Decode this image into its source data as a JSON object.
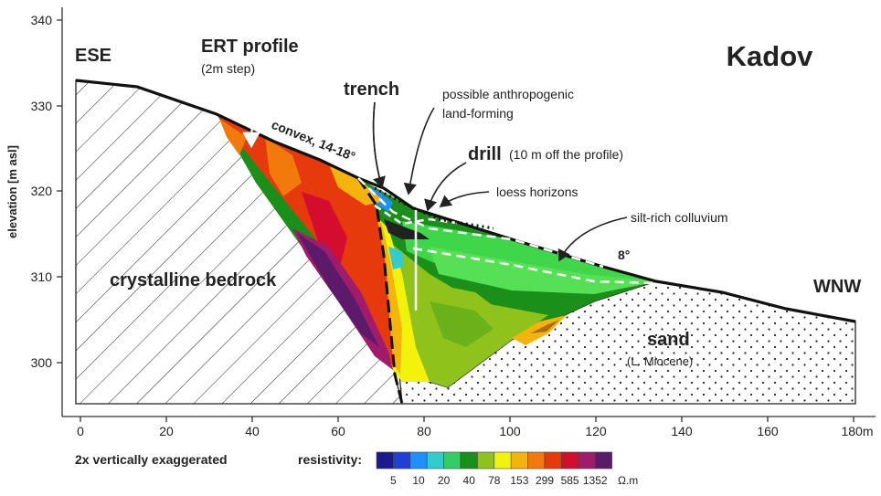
{
  "title": "Kadov",
  "directions": {
    "left": "ESE",
    "right": "WNW"
  },
  "axes": {
    "ylabel": "elevation [m asl]",
    "xunit": "m",
    "y_ticks": [
      "300",
      "310",
      "320",
      "330",
      "340"
    ],
    "x_ticks": [
      "0",
      "20",
      "40",
      "60",
      "80",
      "100",
      "120",
      "140",
      "160",
      "180m"
    ]
  },
  "labels": {
    "ert_profile": "ERT profile",
    "ert_step": "(2m step)",
    "trench": "trench",
    "anthropogenic_1": "possible anthropogenic",
    "anthropogenic_2": "land-forming",
    "convex": "convex, 14-18°",
    "drill": "drill",
    "drill_note": "(10 m off the profile)",
    "loess": "loess horizons",
    "colluvium": "silt-rich colluvium",
    "angle": "8°",
    "bedrock": "crystalline bedrock",
    "sand": "sand",
    "sand_age": "(L. Miocene)",
    "exaggeration": "2x vertically exaggerated"
  },
  "legend": {
    "title": "resistivity:",
    "unit": "Ω.m",
    "values": [
      "5",
      "10",
      "20",
      "40",
      "78",
      "153",
      "299",
      "585",
      "1352"
    ],
    "colors": [
      "#1a1a8c",
      "#1f3fd6",
      "#1e90ff",
      "#33cccc",
      "#33cc66",
      "#1a8f1a",
      "#8fc21a",
      "#f2f20d",
      "#f2b40d",
      "#f27a0d",
      "#e63a0d",
      "#d40d2e",
      "#a01c6b",
      "#5c1a6b"
    ]
  }
}
